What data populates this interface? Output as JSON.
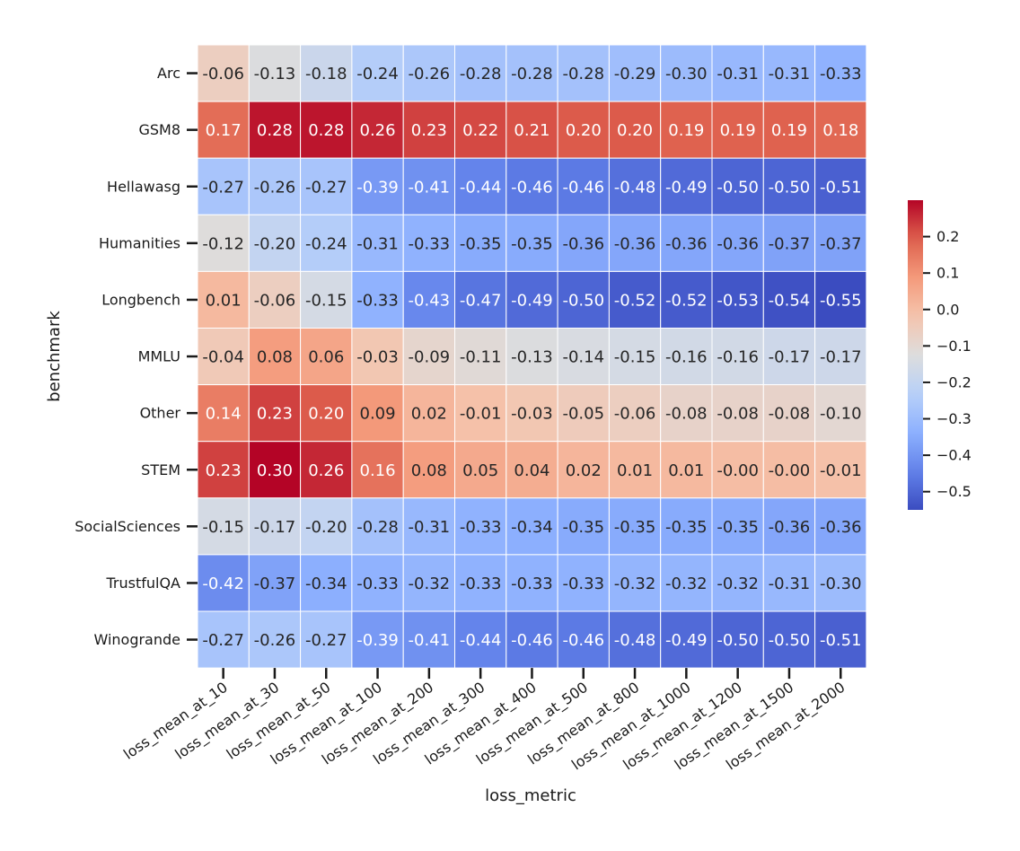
{
  "chart_data": {
    "type": "heatmap",
    "title": "",
    "xlabel": "loss_metric",
    "ylabel": "benchmark",
    "x": [
      "loss_mean_at_10",
      "loss_mean_at_30",
      "loss_mean_at_50",
      "loss_mean_at_100",
      "loss_mean_at_200",
      "loss_mean_at_300",
      "loss_mean_at_400",
      "loss_mean_at_500",
      "loss_mean_at_800",
      "loss_mean_at_1000",
      "loss_mean_at_1200",
      "loss_mean_at_1500",
      "loss_mean_at_2000"
    ],
    "y": [
      "Arc",
      "GSM8",
      "Hellawasg",
      "Humanities",
      "Longbench",
      "MMLU",
      "Other",
      "STEM",
      "SocialSciences",
      "TrustfulQA",
      "Winogrande"
    ],
    "values": [
      [
        -0.06,
        -0.13,
        -0.18,
        -0.24,
        -0.26,
        -0.28,
        -0.28,
        -0.28,
        -0.29,
        -0.3,
        -0.31,
        -0.31,
        -0.33
      ],
      [
        0.17,
        0.28,
        0.28,
        0.26,
        0.23,
        0.22,
        0.21,
        0.2,
        0.2,
        0.19,
        0.19,
        0.19,
        0.18
      ],
      [
        -0.27,
        -0.26,
        -0.27,
        -0.39,
        -0.41,
        -0.44,
        -0.46,
        -0.46,
        -0.48,
        -0.49,
        -0.5,
        -0.5,
        -0.51
      ],
      [
        -0.12,
        -0.2,
        -0.24,
        -0.31,
        -0.33,
        -0.35,
        -0.35,
        -0.36,
        -0.36,
        -0.36,
        -0.36,
        -0.37,
        -0.37
      ],
      [
        0.01,
        -0.06,
        -0.15,
        -0.33,
        -0.43,
        -0.47,
        -0.49,
        -0.5,
        -0.52,
        -0.52,
        -0.53,
        -0.54,
        -0.55
      ],
      [
        -0.04,
        0.08,
        0.06,
        -0.03,
        -0.09,
        -0.11,
        -0.13,
        -0.14,
        -0.15,
        -0.16,
        -0.16,
        -0.17,
        -0.17
      ],
      [
        0.14,
        0.23,
        0.2,
        0.09,
        0.02,
        -0.01,
        -0.03,
        -0.05,
        -0.06,
        -0.08,
        -0.08,
        -0.08,
        -0.1
      ],
      [
        0.23,
        0.3,
        0.26,
        0.16,
        0.08,
        0.05,
        0.04,
        0.02,
        0.01,
        0.01,
        -0.0,
        -0.0,
        -0.01
      ],
      [
        -0.15,
        -0.17,
        -0.2,
        -0.28,
        -0.31,
        -0.33,
        -0.34,
        -0.35,
        -0.35,
        -0.35,
        -0.35,
        -0.36,
        -0.36
      ],
      [
        -0.42,
        -0.37,
        -0.34,
        -0.33,
        -0.32,
        -0.33,
        -0.33,
        -0.33,
        -0.32,
        -0.32,
        -0.32,
        -0.31,
        -0.3
      ],
      [
        -0.27,
        -0.26,
        -0.27,
        -0.39,
        -0.41,
        -0.44,
        -0.46,
        -0.46,
        -0.48,
        -0.49,
        -0.5,
        -0.5,
        -0.51
      ]
    ],
    "labels": [
      [
        "-0.06",
        "-0.13",
        "-0.18",
        "-0.24",
        "-0.26",
        "-0.28",
        "-0.28",
        "-0.28",
        "-0.29",
        "-0.30",
        "-0.31",
        "-0.31",
        "-0.33"
      ],
      [
        "0.17",
        "0.28",
        "0.28",
        "0.26",
        "0.23",
        "0.22",
        "0.21",
        "0.20",
        "0.20",
        "0.19",
        "0.19",
        "0.19",
        "0.18"
      ],
      [
        "-0.27",
        "-0.26",
        "-0.27",
        "-0.39",
        "-0.41",
        "-0.44",
        "-0.46",
        "-0.46",
        "-0.48",
        "-0.49",
        "-0.50",
        "-0.50",
        "-0.51"
      ],
      [
        "-0.12",
        "-0.20",
        "-0.24",
        "-0.31",
        "-0.33",
        "-0.35",
        "-0.35",
        "-0.36",
        "-0.36",
        "-0.36",
        "-0.36",
        "-0.37",
        "-0.37"
      ],
      [
        "0.01",
        "-0.06",
        "-0.15",
        "-0.33",
        "-0.43",
        "-0.47",
        "-0.49",
        "-0.50",
        "-0.52",
        "-0.52",
        "-0.53",
        "-0.54",
        "-0.55"
      ],
      [
        "-0.04",
        "0.08",
        "0.06",
        "-0.03",
        "-0.09",
        "-0.11",
        "-0.13",
        "-0.14",
        "-0.15",
        "-0.16",
        "-0.16",
        "-0.17",
        "-0.17"
      ],
      [
        "0.14",
        "0.23",
        "0.20",
        "0.09",
        "0.02",
        "-0.01",
        "-0.03",
        "-0.05",
        "-0.06",
        "-0.08",
        "-0.08",
        "-0.08",
        "-0.10"
      ],
      [
        "0.23",
        "0.30",
        "0.26",
        "0.16",
        "0.08",
        "0.05",
        "0.04",
        "0.02",
        "0.01",
        "0.01",
        "-0.00",
        "-0.00",
        "-0.01"
      ],
      [
        "-0.15",
        "-0.17",
        "-0.20",
        "-0.28",
        "-0.31",
        "-0.33",
        "-0.34",
        "-0.35",
        "-0.35",
        "-0.35",
        "-0.35",
        "-0.36",
        "-0.36"
      ],
      [
        "-0.42",
        "-0.37",
        "-0.34",
        "-0.33",
        "-0.32",
        "-0.33",
        "-0.33",
        "-0.33",
        "-0.32",
        "-0.32",
        "-0.32",
        "-0.31",
        "-0.30"
      ],
      [
        "-0.27",
        "-0.26",
        "-0.27",
        "-0.39",
        "-0.41",
        "-0.44",
        "-0.46",
        "-0.46",
        "-0.48",
        "-0.49",
        "-0.50",
        "-0.50",
        "-0.51"
      ]
    ],
    "colorbar": {
      "vmin": -0.55,
      "vmax": 0.3,
      "ticks": [
        0.2,
        0.1,
        0.0,
        -0.1,
        -0.2,
        -0.3,
        -0.4,
        -0.5
      ],
      "tick_labels": [
        "0.2",
        "0.1",
        "0.0",
        "−0.1",
        "−0.2",
        "−0.3",
        "−0.4",
        "−0.5"
      ]
    },
    "colormap": "coolwarm"
  }
}
